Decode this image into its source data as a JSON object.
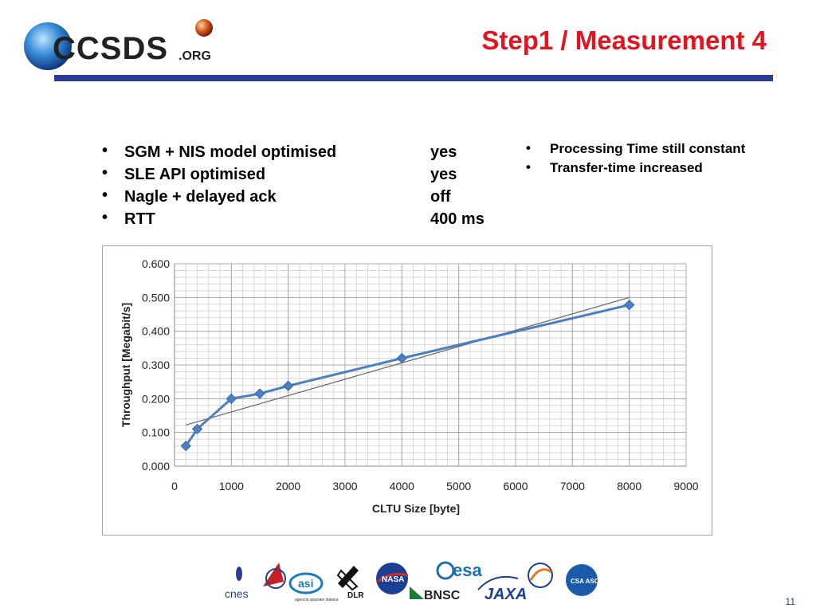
{
  "slide": {
    "title": "Step1 / Measurement 4",
    "page_number": "11",
    "logo_text": "CCSDS",
    "logo_suffix": ".ORG"
  },
  "parameters": [
    {
      "label": "SGM + NIS model optimised",
      "value": "yes"
    },
    {
      "label": "SLE API optimised",
      "value": "yes"
    },
    {
      "label": "Nagle + delayed ack",
      "value": "off"
    },
    {
      "label": "RTT",
      "value": "400 ms"
    }
  ],
  "notes": [
    "Processing Time still constant",
    "Transfer-time increased"
  ],
  "bullet_char": "•",
  "partners": [
    {
      "name": "cnes"
    },
    {
      "name": "agenzia spaziale italiana"
    },
    {
      "name": "DLR"
    },
    {
      "name": "NASA"
    },
    {
      "name": "esa"
    },
    {
      "name": "BNSC"
    },
    {
      "name": "JAXA"
    },
    {
      "name": "INPE"
    },
    {
      "name": "CSA ASC"
    }
  ],
  "partner_subtext": "agenzia spaziale italiana",
  "chart_data": {
    "type": "scatter",
    "xlabel": "CLTU Size [byte]",
    "ylabel": "Throughput [Megabit/s]",
    "xlim": [
      0,
      9000
    ],
    "ylim": [
      0,
      0.6
    ],
    "xticks": [
      "0",
      "1000",
      "2000",
      "3000",
      "4000",
      "5000",
      "6000",
      "7000",
      "8000",
      "9000"
    ],
    "yticks": [
      "0.000",
      "0.100",
      "0.200",
      "0.300",
      "0.400",
      "0.500",
      "0.600"
    ],
    "grid": true,
    "series": [
      {
        "x": [
          200,
          400,
          1000,
          1500,
          2000,
          4000,
          8000
        ],
        "y": [
          0.06,
          0.11,
          0.2,
          0.215,
          0.238,
          0.32,
          0.478
        ],
        "color": "#4a7fc1",
        "marker": "diamond"
      }
    ],
    "trendline": {
      "x": [
        200,
        8000
      ],
      "y": [
        0.122,
        0.5
      ],
      "color": "#666666"
    }
  }
}
